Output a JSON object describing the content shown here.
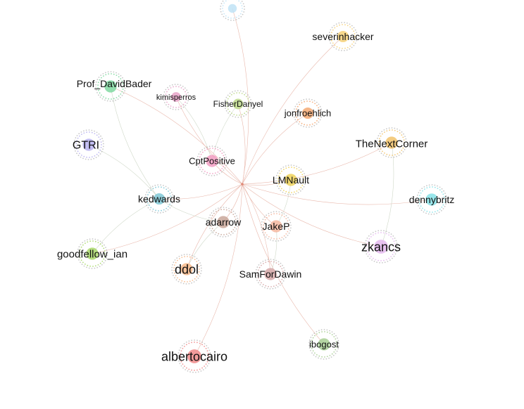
{
  "graph": {
    "hub": "hub",
    "nodes": [
      {
        "id": "top",
        "label": "",
        "color": "#bfe3f6"
      },
      {
        "id": "severinhacker",
        "label": "severinhacker",
        "color": "#f7d27a"
      },
      {
        "id": "Prof_DavidBader",
        "label": "Prof_DavidBader",
        "color": "#7fd8a0"
      },
      {
        "id": "kimisperros",
        "label": "kimisperros",
        "color": "#e7a2c8"
      },
      {
        "id": "FisherDanyel",
        "label": "FisherDanyel",
        "color": "#bcd88a"
      },
      {
        "id": "jonfroehlich",
        "label": "jonfroehlich",
        "color": "#f5a973"
      },
      {
        "id": "GTRI",
        "label": "GTRI",
        "color": "#b9b3f0"
      },
      {
        "id": "TheNextCorner",
        "label": "TheNextCorner",
        "color": "#f2c36b"
      },
      {
        "id": "CptPositive",
        "label": "CptPositive",
        "color": "#f29cc2"
      },
      {
        "id": "LMNault",
        "label": "LMNault",
        "color": "#efd25a"
      },
      {
        "id": "kedwards",
        "label": "kedwards",
        "color": "#7fc8d6"
      },
      {
        "id": "dennybritz",
        "label": "dennybritz",
        "color": "#86e2e8"
      },
      {
        "id": "adarrow",
        "label": "adarrow",
        "color": "#c9a79a"
      },
      {
        "id": "JakeP",
        "label": "JakeP",
        "color": "#f5b7a0"
      },
      {
        "id": "zkancs",
        "label": "zkancs",
        "color": "#e4b8ee"
      },
      {
        "id": "goodfellow_ian",
        "label": "goodfellow_ian",
        "color": "#a9d86a"
      },
      {
        "id": "ddol",
        "label": "ddol",
        "color": "#f7b98a"
      },
      {
        "id": "SamForDawin",
        "label": "SamForDawin",
        "color": "#d6a8a8"
      },
      {
        "id": "ibogost",
        "label": "ibogost",
        "color": "#a8cf94"
      },
      {
        "id": "albertocairo",
        "label": "albertocairo",
        "color": "#f08a8a"
      }
    ],
    "edges": [
      [
        "hub",
        "top"
      ],
      [
        "hub",
        "severinhacker"
      ],
      [
        "hub",
        "Prof_DavidBader"
      ],
      [
        "hub",
        "kimisperros"
      ],
      [
        "hub",
        "FisherDanyel"
      ],
      [
        "hub",
        "jonfroehlich"
      ],
      [
        "hub",
        "TheNextCorner"
      ],
      [
        "hub",
        "CptPositive"
      ],
      [
        "hub",
        "LMNault"
      ],
      [
        "hub",
        "kedwards"
      ],
      [
        "hub",
        "dennybritz"
      ],
      [
        "hub",
        "adarrow"
      ],
      [
        "hub",
        "JakeP"
      ],
      [
        "hub",
        "goodfellow_ian"
      ],
      [
        "hub",
        "ddol"
      ],
      [
        "hub",
        "SamForDawin"
      ],
      [
        "hub",
        "ibogost"
      ],
      [
        "hub",
        "albertocairo"
      ],
      [
        "hub",
        "zkancs"
      ],
      [
        "GTRI",
        "kedwards"
      ],
      [
        "Prof_DavidBader",
        "kedwards"
      ],
      [
        "kimisperros",
        "CptPositive"
      ],
      [
        "FisherDanyel",
        "CptPositive"
      ],
      [
        "TheNextCorner",
        "zkancs"
      ],
      [
        "kedwards",
        "goodfellow_ian"
      ],
      [
        "JakeP",
        "SamForDawin"
      ],
      [
        "adarrow",
        "ddol"
      ],
      [
        "LMNault",
        "JakeP"
      ],
      [
        "kedwards",
        "adarrow"
      ]
    ],
    "edge_color": "#e9b9ad"
  }
}
